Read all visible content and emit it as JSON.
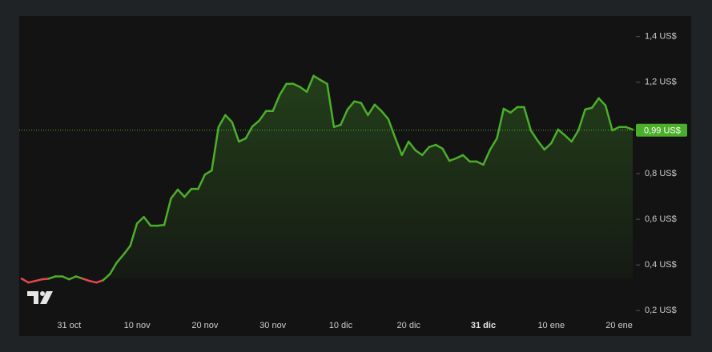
{
  "chart_data": {
    "type": "line",
    "color": "#4caf2a",
    "down_color": "#e5484d",
    "grid": false,
    "categories": [
      null,
      null,
      null,
      null,
      null,
      null,
      null,
      "31 oct",
      null,
      null,
      null,
      null,
      null,
      null,
      null,
      null,
      null,
      "10 nov",
      null,
      null,
      null,
      null,
      null,
      null,
      null,
      null,
      null,
      "20 nov",
      null,
      null,
      null,
      null,
      null,
      null,
      null,
      null,
      null,
      "30 nov",
      null,
      null,
      null,
      null,
      null,
      null,
      null,
      null,
      null,
      "10 dic",
      null,
      null,
      null,
      null,
      null,
      null,
      null,
      null,
      null,
      "20 dic",
      null,
      null,
      null,
      null,
      null,
      null,
      null,
      null,
      null,
      null,
      {
        "label": "31 dic",
        "bold": true
      },
      null,
      null,
      null,
      null,
      null,
      null,
      null,
      null,
      null,
      "10 ene",
      null,
      null,
      null,
      null,
      null,
      null,
      null,
      null,
      null,
      "20 ene",
      null,
      null
    ],
    "values": [
      0.34,
      0.323,
      0.33,
      0.337,
      0.34,
      0.35,
      0.35,
      0.337,
      0.35,
      0.34,
      0.33,
      0.323,
      0.333,
      0.36,
      0.41,
      0.445,
      0.484,
      0.582,
      0.61,
      0.572,
      0.572,
      0.575,
      0.691,
      0.73,
      0.698,
      0.733,
      0.733,
      0.796,
      0.814,
      1.004,
      1.056,
      1.025,
      0.94,
      0.954,
      1.007,
      1.032,
      1.074,
      1.074,
      1.144,
      1.193,
      1.193,
      1.179,
      1.158,
      1.228,
      1.21,
      1.193,
      1.004,
      1.014,
      1.081,
      1.116,
      1.109,
      1.056,
      1.102,
      1.074,
      1.039,
      0.958,
      0.881,
      0.94,
      0.902,
      0.881,
      0.916,
      0.926,
      0.909,
      0.856,
      0.867,
      0.881,
      0.853,
      0.853,
      0.839,
      0.905,
      0.954,
      1.084,
      1.067,
      1.091,
      1.091,
      0.989,
      0.944,
      0.905,
      0.933,
      0.993,
      0.968,
      0.94,
      0.989,
      1.081,
      1.088,
      1.13,
      1.098,
      0.989,
      1.004,
      1.004,
      0.993
    ],
    "ylim": [
      0.18,
      1.49
    ],
    "yticks": [
      {
        "value": 0.2,
        "label": "0,2 US$"
      },
      {
        "value": 0.4,
        "label": "0,4 US$"
      },
      {
        "value": 0.6,
        "label": "0,6 US$"
      },
      {
        "value": 0.8,
        "label": "0,8 US$"
      },
      {
        "value": 1.2,
        "label": "1,2 US$"
      },
      {
        "value": 1.4,
        "label": "1,4 US$"
      }
    ],
    "price_line": {
      "value": 0.99,
      "label": "0,99 US$"
    }
  }
}
